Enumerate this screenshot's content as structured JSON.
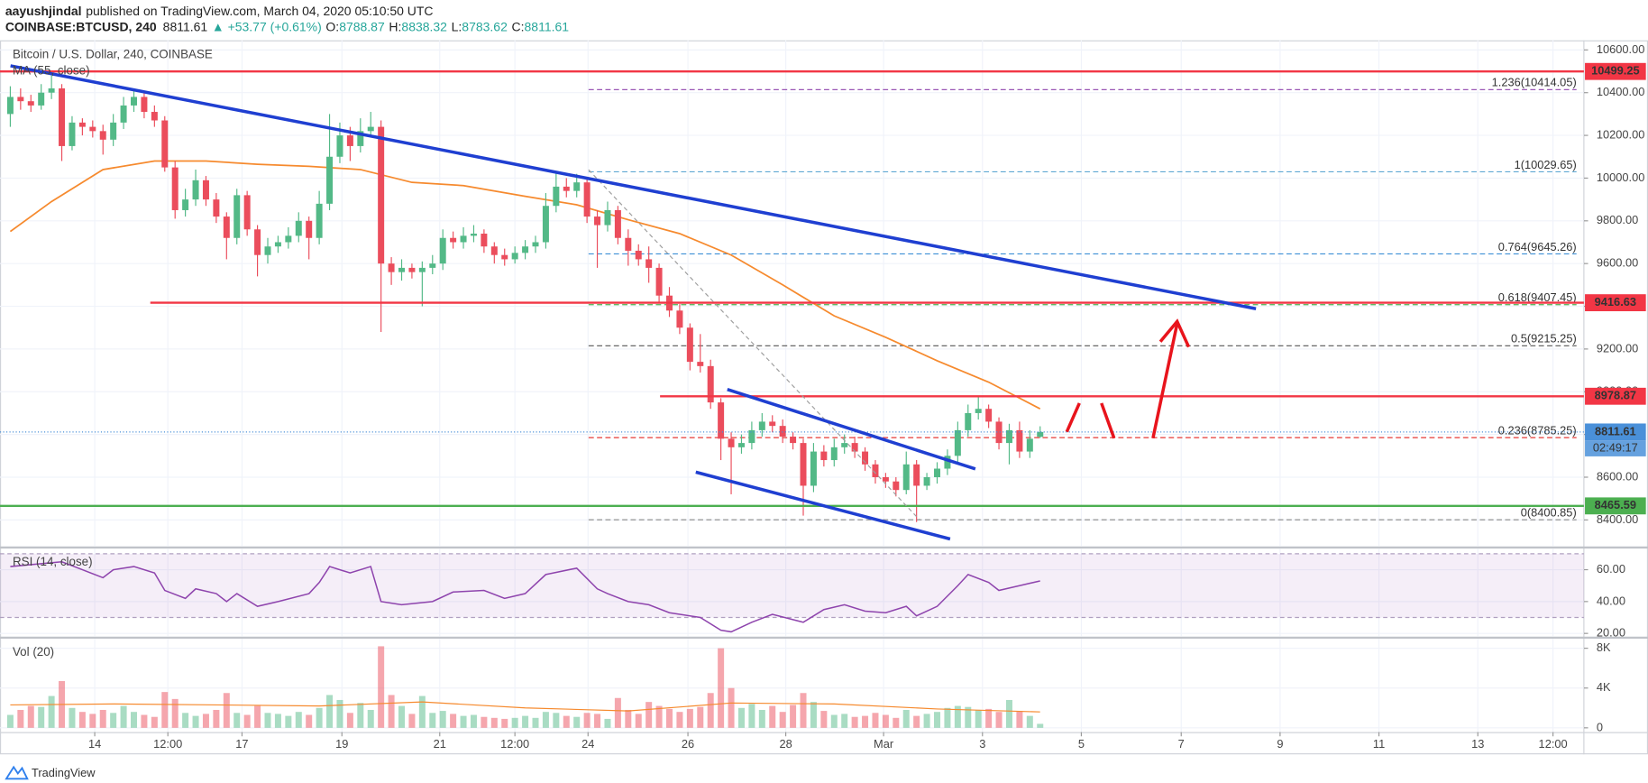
{
  "header": {
    "publisher": "aayushjindal",
    "published": "published on TradingView.com, March 04, 2020 05:10:50 UTC",
    "symbol": "COINBASE:BTCUSD, 240",
    "change": "▲ +53.77 (+0.61%)",
    "ohlc_labels": [
      "O:",
      "H:",
      "L:",
      "C:"
    ]
  },
  "footer": {
    "brand": "TradingView"
  },
  "chart_data": [
    {
      "type": "candlestick",
      "title": "Bitcoin / U.S. Dollar, 240, COINBASE",
      "up_color": "#53b987",
      "down_color": "#eb4d5c",
      "grid": true,
      "xlim": [
        -1,
        152.8
      ],
      "ylim": [
        8276,
        10645
      ],
      "yticks": [
        {
          "value": 8400,
          "label": "8400.00"
        },
        {
          "value": 8600,
          "label": "8600.00"
        },
        {
          "value": 8800,
          "label": "8800.00"
        },
        {
          "value": 9000,
          "label": "9000.00"
        },
        {
          "value": 9200,
          "label": "9200.00"
        },
        {
          "value": 9400,
          "label": "9400.00"
        },
        {
          "value": 9600,
          "label": "9600.00"
        },
        {
          "value": 9800,
          "label": "9800.00"
        },
        {
          "value": 10000,
          "label": "10000.00"
        },
        {
          "value": 10200,
          "label": "10200.00"
        },
        {
          "value": 10400,
          "label": "10400.00"
        },
        {
          "value": 10600,
          "label": "10600.00"
        }
      ],
      "open": [
        10300,
        10380,
        10360,
        10340,
        10400,
        10420,
        10150,
        10260,
        10240,
        10220,
        10180,
        10260,
        10340,
        10380,
        10310,
        10270,
        10050,
        9850,
        9900,
        9990,
        9900,
        9820,
        9720,
        9920,
        9760,
        9640,
        9680,
        9700,
        9730,
        9800,
        9720,
        9880,
        10100,
        10200,
        10150,
        10220,
        10240,
        9600,
        9560,
        9580,
        9560,
        9580,
        9600,
        9720,
        9700,
        9730,
        9740,
        9680,
        9640,
        9620,
        9650,
        9680,
        9700,
        9870,
        9960,
        9940,
        9980,
        9820,
        9780,
        9850,
        9720,
        9660,
        9620,
        9580,
        9450,
        9380,
        9300,
        9140,
        9120,
        8950,
        8780,
        8740,
        8760,
        8820,
        8860,
        8840,
        8790,
        8760,
        8560,
        8720,
        8680,
        8740,
        8760,
        8720,
        8660,
        8600,
        8580,
        8540,
        8660,
        8560,
        8600,
        8640,
        8700,
        8820,
        8900,
        8920,
        8860,
        8760,
        8820,
        8720,
        8788.87
      ],
      "high": [
        10430,
        10420,
        10390,
        10440,
        10480,
        10440,
        10290,
        10280,
        10270,
        10250,
        10300,
        10380,
        10410,
        10400,
        10340,
        10290,
        10080,
        9950,
        10040,
        10010,
        9930,
        9840,
        9950,
        9940,
        9780,
        9720,
        9730,
        9770,
        9840,
        9820,
        9940,
        10300,
        10260,
        10240,
        10280,
        10310,
        10270,
        9630,
        9620,
        9600,
        9610,
        9640,
        9760,
        9750,
        9770,
        9780,
        9760,
        9700,
        9670,
        9680,
        9710,
        9730,
        9930,
        10030,
        10000,
        10020,
        10000,
        9850,
        9890,
        9870,
        9760,
        9690,
        9680,
        9600,
        9490,
        9410,
        9320,
        9270,
        9150,
        8970,
        8810,
        8800,
        8860,
        8900,
        8890,
        8870,
        8810,
        8780,
        8760,
        8750,
        8780,
        8800,
        8790,
        8740,
        8680,
        8620,
        8600,
        8720,
        8680,
        8620,
        8670,
        8730,
        8860,
        8940,
        8980,
        8940,
        8880,
        8850,
        8860,
        8820,
        8838.32
      ],
      "low": [
        10240,
        10320,
        10310,
        10320,
        10370,
        10080,
        10130,
        10200,
        10190,
        10110,
        10150,
        10230,
        10310,
        10280,
        10240,
        10030,
        9810,
        9820,
        9870,
        9870,
        9790,
        9620,
        9690,
        9730,
        9540,
        9600,
        9650,
        9670,
        9700,
        9620,
        9690,
        9850,
        10070,
        10080,
        10120,
        10190,
        9280,
        9500,
        9520,
        9530,
        9400,
        9550,
        9570,
        9670,
        9670,
        9700,
        9650,
        9600,
        9590,
        9600,
        9620,
        9650,
        9670,
        9840,
        9910,
        9910,
        9790,
        9580,
        9750,
        9690,
        9590,
        9590,
        9510,
        9420,
        9350,
        9270,
        9100,
        9090,
        8920,
        8680,
        8520,
        8710,
        8730,
        8790,
        8810,
        8760,
        8730,
        8420,
        8530,
        8650,
        8650,
        8710,
        8690,
        8630,
        8570,
        8550,
        8510,
        8520,
        8390,
        8540,
        8570,
        8610,
        8670,
        8790,
        8870,
        8830,
        8730,
        8660,
        8690,
        8690,
        8783.62
      ],
      "close": [
        10380,
        10360,
        10340,
        10400,
        10420,
        10150,
        10260,
        10240,
        10220,
        10180,
        10260,
        10340,
        10380,
        10310,
        10270,
        10050,
        9850,
        9900,
        9990,
        9900,
        9820,
        9720,
        9920,
        9760,
        9640,
        9680,
        9700,
        9730,
        9800,
        9720,
        9880,
        10100,
        10200,
        10150,
        10220,
        10240,
        9600,
        9560,
        9580,
        9560,
        9580,
        9600,
        9720,
        9700,
        9730,
        9740,
        9680,
        9640,
        9620,
        9650,
        9680,
        9700,
        9870,
        9960,
        9940,
        9980,
        9820,
        9780,
        9850,
        9720,
        9660,
        9620,
        9580,
        9450,
        9380,
        9300,
        9140,
        9120,
        8950,
        8780,
        8740,
        8760,
        8820,
        8860,
        8840,
        8790,
        8760,
        8560,
        8720,
        8680,
        8740,
        8760,
        8720,
        8660,
        8600,
        8580,
        8540,
        8660,
        8560,
        8600,
        8640,
        8700,
        8820,
        8900,
        8920,
        8860,
        8760,
        8820,
        8720,
        8780,
        8811.61
      ],
      "series": [
        {
          "name": "MA (55, close)",
          "color": "#f68a2e",
          "x": [
            0,
            4,
            9,
            14,
            19,
            24,
            29,
            34,
            39,
            44,
            50,
            55,
            60,
            65,
            70,
            75,
            80,
            85,
            90,
            95,
            100
          ],
          "values": [
            9750,
            9890,
            10040,
            10080,
            10080,
            10065,
            10055,
            10040,
            9980,
            9965,
            9915,
            9875,
            9805,
            9740,
            9640,
            9500,
            9355,
            9255,
            9145,
            9045,
            8920
          ]
        }
      ],
      "levels": [
        {
          "value": 10499.25,
          "color": "#f23645"
        },
        {
          "value": 9416.63,
          "color": "#f23645"
        },
        {
          "value": 8978.87,
          "color": "#f23645"
        },
        {
          "value": 8465.59,
          "color": "#4caf50"
        }
      ],
      "fib": [
        {
          "label": "1.236(10414.05)",
          "value": 10414.05,
          "color": "#9b59b6"
        },
        {
          "label": "1(10029.65)",
          "value": 10029.65,
          "color": "#5fa8d3"
        },
        {
          "label": "0.764(9645.26)",
          "value": 9645.26,
          "color": "#3d8fd6"
        },
        {
          "label": "0.618(9407.45)",
          "value": 9407.45,
          "color": "#4caf50"
        },
        {
          "label": "0.5(9215.25)",
          "value": 9215.25,
          "color": "#555555"
        },
        {
          "label": "0.236(8785.25)",
          "value": 8785.25,
          "color": "#e53935"
        },
        {
          "label": "0(8400.85)",
          "value": 8400.85,
          "color": "#888888"
        }
      ],
      "last_color": "#4a90d9",
      "countdown": "02:49:17"
    },
    {
      "type": "line",
      "title": "RSI (14, close)",
      "color": "#8e44ad",
      "grid": true,
      "xlim": [
        -1,
        152.8
      ],
      "ylim": [
        18,
        73.3
      ],
      "yticks": [
        {
          "value": 20,
          "label": "20.00"
        },
        {
          "value": 40,
          "label": "40.00"
        },
        {
          "value": 60,
          "label": "60.00"
        }
      ],
      "band": [
        30,
        70
      ],
      "x": [
        0,
        5,
        7,
        9,
        10,
        12,
        14,
        15,
        17,
        18,
        20,
        21,
        22,
        24,
        26,
        29,
        30,
        31,
        33,
        35,
        36,
        38,
        41,
        43,
        46,
        48,
        50,
        52,
        55,
        57,
        58,
        60,
        62,
        64,
        67,
        69,
        70,
        72,
        74,
        77,
        79,
        81,
        83,
        85,
        87,
        88,
        90,
        92,
        93,
        95,
        96,
        98,
        100
      ],
      "values": [
        62,
        65,
        60,
        55,
        60,
        62,
        58,
        47,
        42,
        48,
        45,
        40,
        45,
        37,
        40,
        45,
        52,
        62,
        58,
        62,
        40,
        38,
        40,
        46,
        47,
        42,
        45,
        57,
        61,
        48,
        45,
        40,
        38,
        33,
        30,
        22,
        21,
        27,
        32,
        27,
        35,
        38,
        34,
        33,
        37,
        31,
        37,
        50,
        57,
        52,
        47,
        50,
        53
      ]
    },
    {
      "type": "bar",
      "title": "Vol (20)",
      "grid": true,
      "xlim": [
        -1,
        152.8
      ],
      "ylim": [
        -427,
        8960
      ],
      "yticks": [
        0,
        {
          "value": 4000,
          "label": "4K"
        },
        {
          "value": 8000,
          "label": "8K"
        }
      ],
      "xticks": [
        {
          "value": 8.2,
          "label": "14"
        },
        {
          "value": 15.3,
          "label": "12:00"
        },
        {
          "value": 22.5,
          "label": "17"
        },
        {
          "value": 32.2,
          "label": "19"
        },
        {
          "value": 41.7,
          "label": "21"
        },
        {
          "value": 49,
          "label": "12:00"
        },
        {
          "value": 56.1,
          "label": "24"
        },
        {
          "value": 65.8,
          "label": "26"
        },
        {
          "value": 75.3,
          "label": "28"
        },
        {
          "value": 84.8,
          "label": "Mar"
        },
        {
          "value": 94.4,
          "label": "3"
        },
        {
          "value": 104,
          "label": "5"
        },
        {
          "value": 113.7,
          "label": "7"
        },
        {
          "value": 123.3,
          "label": "9"
        },
        {
          "value": 132.9,
          "label": "11"
        },
        {
          "value": 142.5,
          "label": "13"
        },
        {
          "value": 149.8,
          "label": "12:00"
        }
      ],
      "values": [
        1300,
        1800,
        2200,
        2100,
        3200,
        4700,
        2000,
        1600,
        1400,
        1800,
        1500,
        2200,
        1600,
        1300,
        1100,
        3600,
        2900,
        1500,
        1200,
        1400,
        1800,
        3500,
        1500,
        1300,
        2200,
        1500,
        1400,
        1200,
        1600,
        1300,
        2000,
        3300,
        2800,
        1500,
        2500,
        1800,
        8200,
        3300,
        2200,
        1400,
        3200,
        1500,
        1700,
        1400,
        1200,
        1300,
        1100,
        1000,
        900,
        1000,
        1200,
        1000,
        1600,
        1500,
        1200,
        1100,
        1500,
        1400,
        900,
        3000,
        1800,
        1400,
        2600,
        2200,
        1900,
        1600,
        1900,
        2100,
        3500,
        8000,
        4000,
        2000,
        2400,
        1800,
        2200,
        1600,
        2300,
        3500,
        2600,
        1700,
        1300,
        1400,
        1100,
        1200,
        1500,
        1300,
        1000,
        1800,
        1200,
        1400,
        1600,
        2000,
        2200,
        2100,
        1800,
        1900,
        1600,
        2800,
        1700,
        1200,
        400
      ],
      "ma": {
        "color": "#f68a2e",
        "x": [
          0,
          10,
          20,
          30,
          40,
          50,
          60,
          70,
          80,
          90,
          100
        ],
        "values": [
          2300,
          2400,
          2300,
          2200,
          2600,
          2000,
          1700,
          2500,
          2400,
          1900,
          1600
        ]
      }
    }
  ]
}
